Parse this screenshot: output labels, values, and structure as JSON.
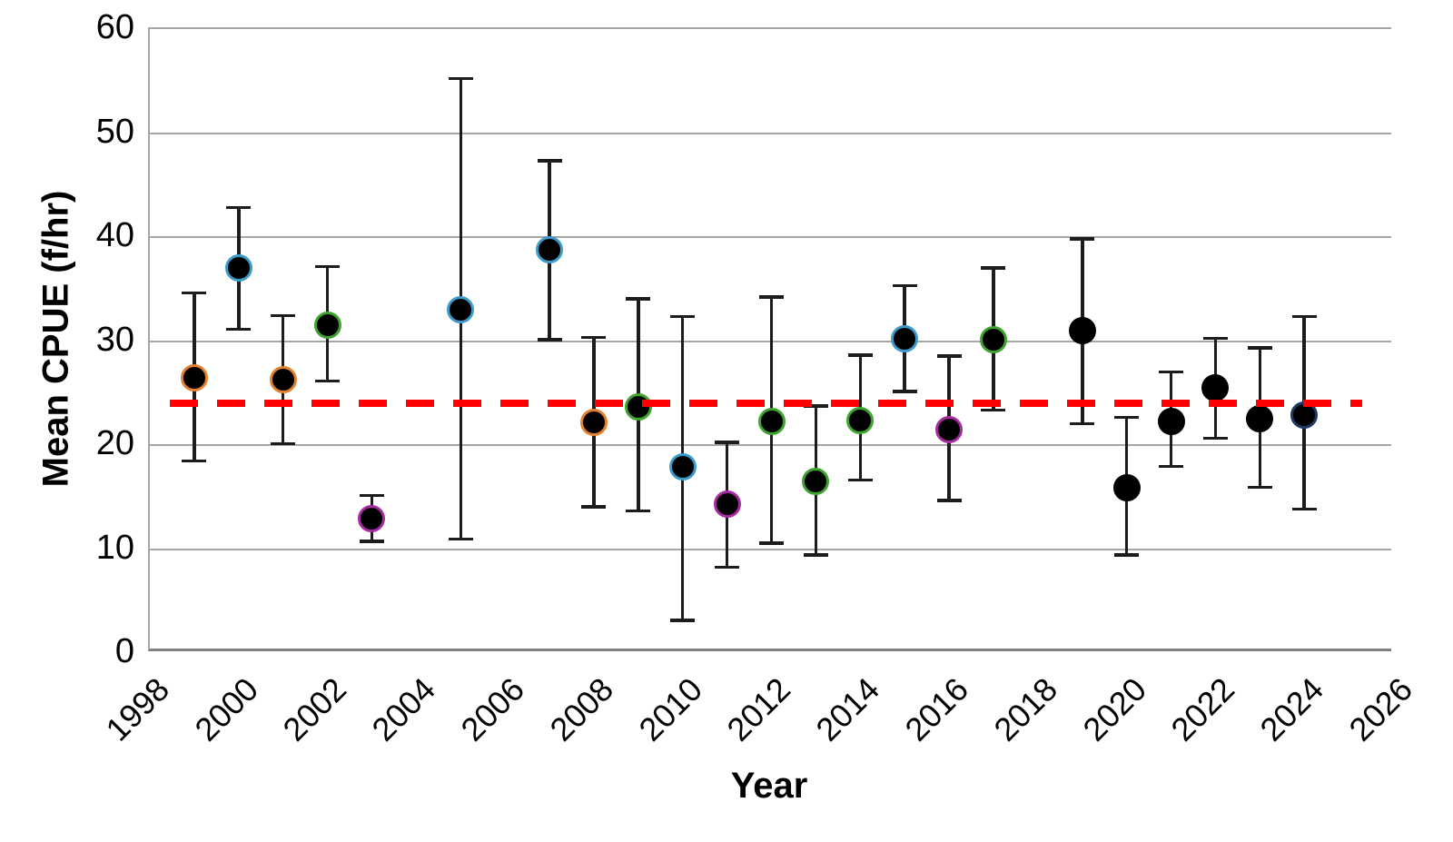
{
  "chart_data": {
    "type": "scatter",
    "title": "",
    "xlabel": "Year",
    "ylabel": "Mean CPUE (f/hr)",
    "xlim": [
      1998,
      2026
    ],
    "ylim": [
      0,
      60
    ],
    "x_ticks": [
      1998,
      2000,
      2002,
      2004,
      2006,
      2008,
      2010,
      2012,
      2014,
      2016,
      2018,
      2020,
      2022,
      2024,
      2026
    ],
    "y_ticks": [
      0,
      10,
      20,
      30,
      40,
      50,
      60
    ],
    "grid": "horizontal",
    "legend_position": "none",
    "reference_line": {
      "value": 24.0,
      "style": "dashed",
      "color": "#ff0000"
    },
    "marker_colors": {
      "orange": "#e2812f",
      "blue": "#3d9bc9",
      "green": "#3fa32f",
      "purple": "#a62ba0",
      "navy": "#203864",
      "black": "#000000"
    },
    "points": [
      {
        "year": 1999,
        "mean": 26.5,
        "lo": 18.3,
        "hi": 34.8,
        "outline": "orange"
      },
      {
        "year": 2000,
        "mean": 37.0,
        "lo": 31.0,
        "hi": 43.0,
        "outline": "blue"
      },
      {
        "year": 2001,
        "mean": 26.3,
        "lo": 20.0,
        "hi": 32.6,
        "outline": "orange"
      },
      {
        "year": 2002,
        "mean": 31.5,
        "lo": 26.0,
        "hi": 37.3,
        "outline": "green"
      },
      {
        "year": 2003,
        "mean": 12.9,
        "lo": 10.6,
        "hi": 15.3,
        "outline": "purple"
      },
      {
        "year": 2005,
        "mean": 33.0,
        "lo": 10.8,
        "hi": 55.4,
        "outline": "blue"
      },
      {
        "year": 2007,
        "mean": 38.8,
        "lo": 30.0,
        "hi": 47.5,
        "outline": "blue"
      },
      {
        "year": 2008,
        "mean": 22.2,
        "lo": 13.9,
        "hi": 30.5,
        "outline": "orange"
      },
      {
        "year": 2009,
        "mean": 23.7,
        "lo": 13.5,
        "hi": 34.2,
        "outline": "green"
      },
      {
        "year": 2010,
        "mean": 17.9,
        "lo": 3.0,
        "hi": 32.5,
        "outline": "blue"
      },
      {
        "year": 2011,
        "mean": 14.3,
        "lo": 8.1,
        "hi": 20.4,
        "outline": "purple"
      },
      {
        "year": 2012,
        "mean": 22.3,
        "lo": 10.4,
        "hi": 34.4,
        "outline": "green"
      },
      {
        "year": 2013,
        "mean": 16.5,
        "lo": 9.3,
        "hi": 23.9,
        "outline": "green"
      },
      {
        "year": 2014,
        "mean": 22.4,
        "lo": 16.5,
        "hi": 28.8,
        "outline": "green"
      },
      {
        "year": 2015,
        "mean": 30.2,
        "lo": 25.0,
        "hi": 35.5,
        "outline": "blue"
      },
      {
        "year": 2016,
        "mean": 21.5,
        "lo": 14.5,
        "hi": 28.7,
        "outline": "purple"
      },
      {
        "year": 2017,
        "mean": 30.1,
        "lo": 23.2,
        "hi": 37.2,
        "outline": "green"
      },
      {
        "year": 2019,
        "mean": 31.0,
        "lo": 21.9,
        "hi": 40.0,
        "outline": "black"
      },
      {
        "year": 2020,
        "mean": 15.9,
        "lo": 9.3,
        "hi": 22.8,
        "outline": "black"
      },
      {
        "year": 2021,
        "mean": 22.3,
        "lo": 17.8,
        "hi": 27.2,
        "outline": "black"
      },
      {
        "year": 2022,
        "mean": 25.5,
        "lo": 20.5,
        "hi": 30.4,
        "outline": "black"
      },
      {
        "year": 2023,
        "mean": 22.5,
        "lo": 15.8,
        "hi": 29.5,
        "outline": "black"
      },
      {
        "year": 2024,
        "mean": 22.9,
        "lo": 13.7,
        "hi": 32.5,
        "outline": "navy"
      }
    ]
  }
}
